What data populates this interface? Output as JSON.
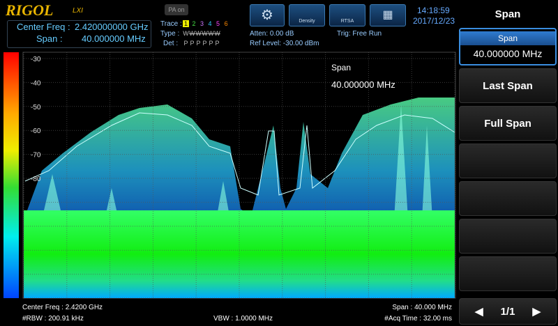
{
  "header": {
    "brand": "RIGOL",
    "brand_sub": "LXI",
    "pa_button": "PA on",
    "trace_label": "Trace :",
    "traces": [
      "1",
      "2",
      "3",
      "4",
      "5",
      "6"
    ],
    "type_label": "Type :",
    "types": [
      "W",
      "W",
      "W",
      "W",
      "W",
      "W"
    ],
    "det_label": "Det :",
    "dets": [
      "P",
      "P",
      "P",
      "P",
      "P",
      "P"
    ],
    "mode_buttons": [
      "Density",
      "RTSA"
    ],
    "time": "14:18:59",
    "date": "2017/12/23"
  },
  "status": {
    "center_freq_label": "Center Freq :",
    "center_freq": "2.420000000 GHz",
    "span_label": "Span :",
    "span": "40.000000 MHz",
    "atten": "Atten: 0.00 dB",
    "ref_level": "Ref Level: -30.00 dBm",
    "trigger": "Trig: Free Run"
  },
  "display": {
    "y_labels": [
      "-30",
      "-40",
      "-50",
      "-60",
      "-70",
      "-80"
    ],
    "annotation_title": "Span",
    "annotation_value": "40.000000 MHz"
  },
  "footer": {
    "center_freq": "Center Freq : 2.4200 GHz",
    "span": "Span : 40.000 MHz",
    "rbw": "#RBW : 200.91 kHz",
    "vbw": "VBW : 1.0000 MHz",
    "acq_time": "#Acq Time : 32.00 ms"
  },
  "menu": {
    "title": "Span",
    "items": [
      {
        "label": "Span",
        "value": "40.000000 MHz"
      },
      {
        "label": "Last Span"
      },
      {
        "label": "Full Span"
      }
    ],
    "page": "1/1"
  }
}
